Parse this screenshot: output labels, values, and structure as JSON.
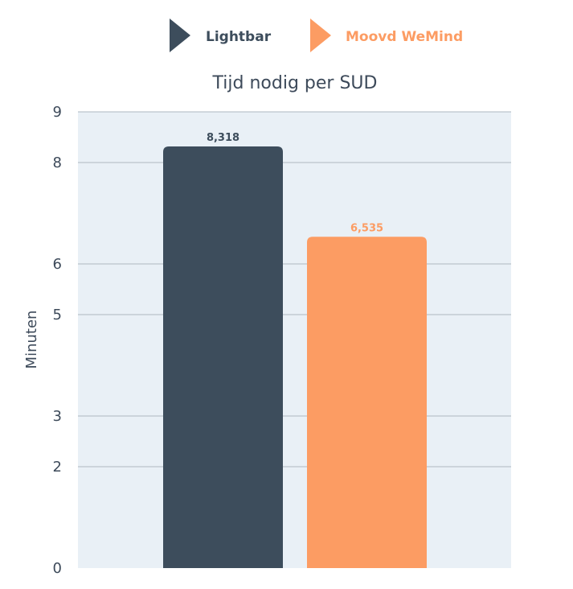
{
  "chart_data": {
    "type": "bar",
    "title": "Tijd nodig per SUD",
    "xlabel": "",
    "ylabel": "Minuten",
    "categories": [
      "Lightbar",
      "Moovd WeMind"
    ],
    "values": [
      8.318,
      6.535
    ],
    "data_labels": [
      "8,318",
      "6,535"
    ],
    "colors": [
      "#3d4d5c",
      "#fc9c63"
    ],
    "y_ticks": [
      0,
      2,
      3,
      5,
      6,
      8,
      9
    ],
    "ylim": [
      0,
      9.0
    ],
    "grid": true,
    "plot_background": "#e9f0f6",
    "legend": {
      "placement": "top",
      "entries": [
        {
          "label": "Lightbar",
          "color": "#3d4d5c",
          "icon": "triangle-right-icon"
        },
        {
          "label": "Moovd WeMind",
          "color": "#fc9c63",
          "icon": "triangle-right-icon"
        }
      ]
    }
  }
}
